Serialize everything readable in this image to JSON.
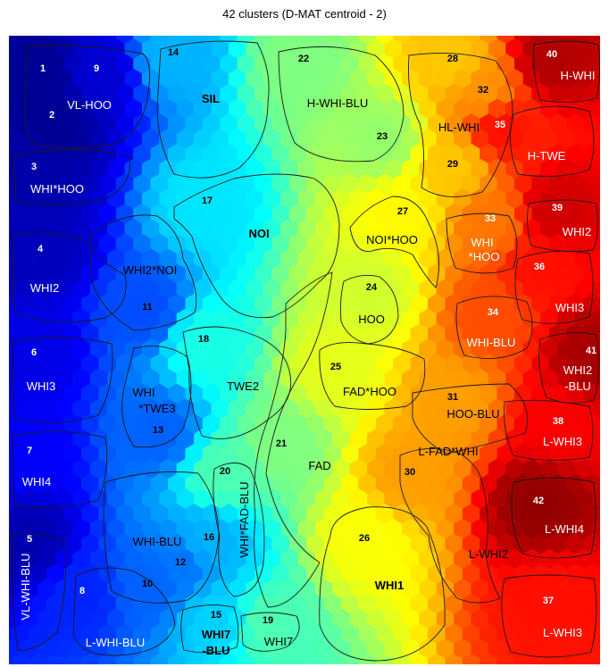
{
  "chart_data": {
    "type": "heatmap",
    "title": "42 clusters  (D-MAT centroid - 2)",
    "colormap": [
      "#00007f",
      "#0000ff",
      "#0080ff",
      "#00ffff",
      "#80ff80",
      "#ffff00",
      "#ff8000",
      "#ff0000",
      "#7f0000"
    ],
    "clusters": [
      {
        "id": "1",
        "name": "VL-HOO",
        "value": 0.02
      },
      {
        "id": "2",
        "name": "VL-HOO",
        "value": 0.02
      },
      {
        "id": "9",
        "name": "VL-HOO",
        "value": 0.08
      },
      {
        "id": "3",
        "name": "WHI*HOO",
        "value": 0.04
      },
      {
        "id": "4",
        "name": "WHI2",
        "value": 0.06
      },
      {
        "id": "5",
        "name": "VL-WHI-BLU",
        "value": 0.05
      },
      {
        "id": "6",
        "name": "WHI3",
        "value": 0.1
      },
      {
        "id": "7",
        "name": "WHI4",
        "value": 0.12
      },
      {
        "id": "8",
        "name": "L-WHI-BLU",
        "value": 0.16
      },
      {
        "id": "10",
        "name": "WHI-BLU",
        "value": 0.22
      },
      {
        "id": "11",
        "name": "WHI2*NOI",
        "value": 0.2
      },
      {
        "id": "12",
        "name": "WHI-BLU",
        "value": 0.24
      },
      {
        "id": "13",
        "name": "WHI *TWE3",
        "value": 0.22
      },
      {
        "id": "14",
        "name": "SIL",
        "value": 0.3
      },
      {
        "id": "15",
        "name": "WHI7 -BLU",
        "value": 0.33
      },
      {
        "id": "16",
        "name": "WHI-BLU",
        "value": 0.3
      },
      {
        "id": "17",
        "name": "NOI",
        "value": 0.35
      },
      {
        "id": "18",
        "name": "TWE2",
        "value": 0.4
      },
      {
        "id": "19",
        "name": "WHI7",
        "value": 0.45
      },
      {
        "id": "20",
        "name": "WHI*FAD-BLU",
        "value": 0.45
      },
      {
        "id": "21",
        "name": "FAD",
        "value": 0.5
      },
      {
        "id": "22",
        "name": "H-WHI-BLU",
        "value": 0.5
      },
      {
        "id": "23",
        "name": "H-WHI-BLU",
        "value": 0.52
      },
      {
        "id": "24",
        "name": "HOO",
        "value": 0.58
      },
      {
        "id": "25",
        "name": "FAD*HOO",
        "value": 0.6
      },
      {
        "id": "26",
        "name": "WHI1",
        "value": 0.62
      },
      {
        "id": "27",
        "name": "NOI*HOO",
        "value": 0.63
      },
      {
        "id": "28",
        "name": "HL-WHI",
        "value": 0.68
      },
      {
        "id": "29",
        "name": "HL-WHI",
        "value": 0.68
      },
      {
        "id": "30",
        "name": "L-FAD*WHI",
        "value": 0.72
      },
      {
        "id": "31",
        "name": "HOO-BLU",
        "value": 0.72
      },
      {
        "id": "32",
        "name": "HL-WHI",
        "value": 0.73
      },
      {
        "id": "33",
        "name": "WHI *HOO",
        "value": 0.76
      },
      {
        "id": "34",
        "name": "WHI-BLU",
        "value": 0.8
      },
      {
        "id": "35",
        "name": "H-TWE",
        "value": 0.86
      },
      {
        "id": "36",
        "name": "WHI3",
        "value": 0.86
      },
      {
        "id": "37",
        "name": "L-WHI3",
        "value": 0.86
      },
      {
        "id": "38",
        "name": "L-WHI3",
        "value": 0.88
      },
      {
        "id": "39",
        "name": "WHI2",
        "value": 0.92
      },
      {
        "id": "40",
        "name": "H-WHI",
        "value": 0.95
      },
      {
        "id": "41",
        "name": "WHI2 -BLU",
        "value": 0.96
      },
      {
        "id": "42",
        "name": "L-WHI4",
        "value": 0.98
      }
    ],
    "cluster_labels": [
      {
        "text": "VL-HOO",
        "cluster": "1"
      },
      {
        "text": "WHI*HOO",
        "cluster": "3"
      },
      {
        "text": "WHI2",
        "cluster": "4"
      },
      {
        "text": "VL-WHI-BLU",
        "cluster": "5"
      },
      {
        "text": "WHI3",
        "cluster": "6"
      },
      {
        "text": "WHI4",
        "cluster": "7"
      },
      {
        "text": "L-WHI-BLU",
        "cluster": "8"
      },
      {
        "text": "WHI2*NOI",
        "cluster": "11"
      },
      {
        "text": "WHI",
        "cluster": "13"
      },
      {
        "text": "*TWE3",
        "cluster": "13"
      },
      {
        "text": "WHI-BLU",
        "cluster": "16"
      },
      {
        "text": "SIL",
        "cluster": "14"
      },
      {
        "text": "NOI",
        "cluster": "17"
      },
      {
        "text": "TWE2",
        "cluster": "18"
      },
      {
        "text": "WHI7",
        "cluster": "15"
      },
      {
        "text": "-BLU",
        "cluster": "15"
      },
      {
        "text": "WHI7",
        "cluster": "19"
      },
      {
        "text": "WHI*FAD-BLU",
        "cluster": "20"
      },
      {
        "text": "FAD",
        "cluster": "21"
      },
      {
        "text": "H-WHI-BLU",
        "cluster": "22"
      },
      {
        "text": "HOO",
        "cluster": "24"
      },
      {
        "text": "FAD*HOO",
        "cluster": "25"
      },
      {
        "text": "WHI1",
        "cluster": "26"
      },
      {
        "text": "NOI*HOO",
        "cluster": "27"
      },
      {
        "text": "HL-WHI",
        "cluster": "28"
      },
      {
        "text": "L-FAD*WHI",
        "cluster": "30"
      },
      {
        "text": "HOO-BLU",
        "cluster": "31"
      },
      {
        "text": "L-WHI2",
        "cluster": "31"
      },
      {
        "text": "WHI",
        "cluster": "33"
      },
      {
        "text": "*HOO",
        "cluster": "33"
      },
      {
        "text": "WHI-BLU",
        "cluster": "34"
      },
      {
        "text": "H-TWE",
        "cluster": "35"
      },
      {
        "text": "WHI3",
        "cluster": "36"
      },
      {
        "text": "L-WHI3",
        "cluster": "37"
      },
      {
        "text": "L-WHI3",
        "cluster": "38"
      },
      {
        "text": "WHI2",
        "cluster": "39"
      },
      {
        "text": "H-WHI",
        "cluster": "40"
      },
      {
        "text": "WHI2",
        "cluster": "41"
      },
      {
        "text": "-BLU",
        "cluster": "41"
      },
      {
        "text": "L-WHI4",
        "cluster": "42"
      }
    ]
  }
}
